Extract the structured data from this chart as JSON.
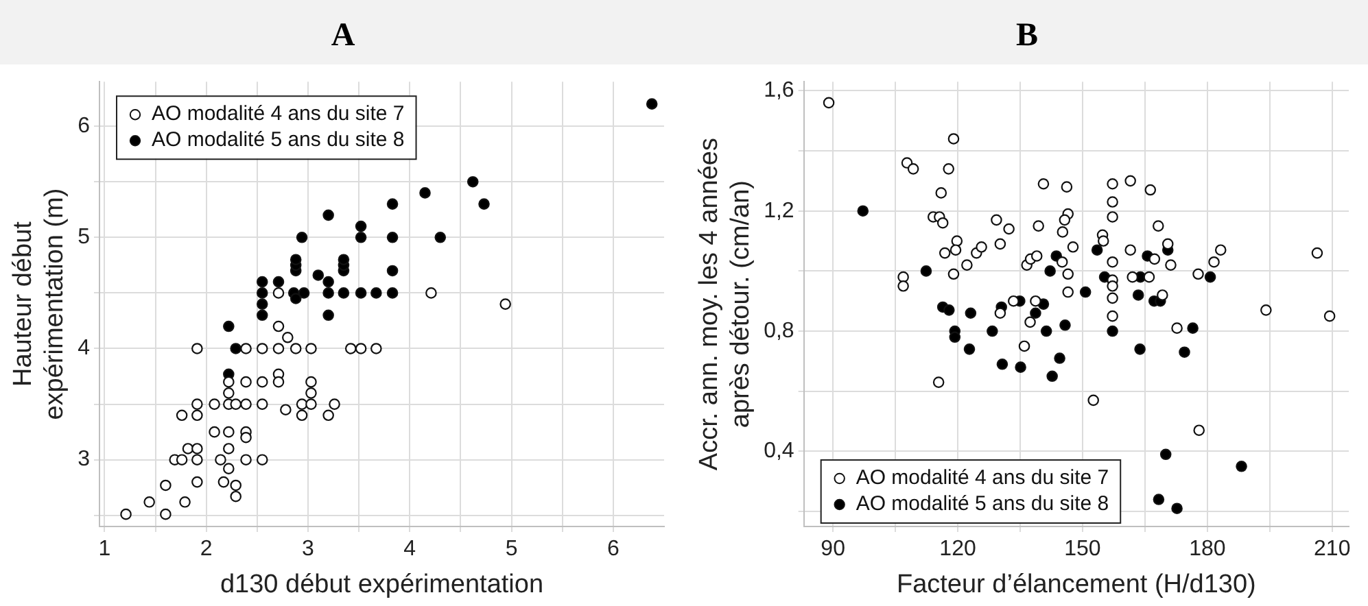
{
  "chart_data": [
    {
      "type": "scatter",
      "title": "A",
      "xlabel": "d130 début expérimentation",
      "ylabel": "Hauteur début\nexpérimentation (m)",
      "xlim": [
        0.95,
        6.5
      ],
      "ylim": [
        2.4,
        6.4
      ],
      "xticks": [
        1,
        {
          "value": 1.5,
          "label": null
        },
        2,
        {
          "value": 2.5,
          "label": null
        },
        3,
        {
          "value": 3.5,
          "label": null
        },
        4,
        {
          "value": 4.5,
          "label": null
        },
        5,
        {
          "value": 5.5,
          "label": null
        },
        6
      ],
      "yticks": [
        {
          "value": 2.5,
          "label": null
        },
        3,
        {
          "value": 3.5,
          "label": null
        },
        4,
        {
          "value": 4.5,
          "label": null
        },
        5,
        {
          "value": 5.5,
          "label": null
        },
        6
      ],
      "grid": true,
      "legend": "top left",
      "marker": "circle",
      "series": [
        {
          "name": "AO modalité 4 ans du site 7",
          "color": "#ffffff",
          "x": [
            1.21,
            1.44,
            1.6,
            1.79,
            1.6,
            1.91,
            1.69,
            1.76,
            1.82,
            1.91,
            1.91,
            1.76,
            1.91,
            1.91,
            2.08,
            2.08,
            2.22,
            2.14,
            2.22,
            2.22,
            2.17,
            2.29,
            2.29,
            2.39,
            2.39,
            2.39,
            2.55,
            2.22,
            2.29,
            2.39,
            2.55,
            2.22,
            2.22,
            2.39,
            2.55,
            2.71,
            2.71,
            2.78,
            2.94,
            2.94,
            3.03,
            3.03,
            3.03,
            3.2,
            3.26,
            1.91,
            2.39,
            2.55,
            2.71,
            2.88,
            3.03,
            3.42,
            3.52,
            3.67,
            2.71,
            2.8,
            2.71,
            4.21,
            4.94
          ],
          "values": [
            2.51,
            2.62,
            2.51,
            2.62,
            2.77,
            2.8,
            3.0,
            3.0,
            3.1,
            3.1,
            3.0,
            3.4,
            3.4,
            3.5,
            3.5,
            3.25,
            3.25,
            3.0,
            3.1,
            2.92,
            2.8,
            2.77,
            2.67,
            3.25,
            3.2,
            3.0,
            3.0,
            3.5,
            3.5,
            3.5,
            3.5,
            3.6,
            3.7,
            3.7,
            3.7,
            3.77,
            3.7,
            3.45,
            3.5,
            3.4,
            3.5,
            3.6,
            3.7,
            3.4,
            3.5,
            4.0,
            4.0,
            4.0,
            4.0,
            4.0,
            4.0,
            4.0,
            4.0,
            4.0,
            4.2,
            4.1,
            4.5,
            4.5,
            4.4
          ]
        },
        {
          "name": "AO modalité 5 ans du site 8",
          "color": "#000000",
          "x": [
            6.38,
            2.22,
            2.29,
            2.22,
            2.55,
            2.55,
            2.55,
            2.55,
            2.71,
            2.86,
            2.88,
            2.96,
            2.88,
            2.88,
            2.88,
            2.94,
            3.2,
            3.2,
            3.1,
            3.2,
            3.2,
            3.35,
            3.35,
            3.35,
            3.35,
            3.52,
            3.52,
            3.52,
            3.67,
            3.83,
            3.83,
            3.83,
            3.83,
            4.15,
            4.3,
            4.62,
            4.73
          ],
          "values": [
            6.2,
            4.2,
            4.0,
            3.77,
            4.3,
            4.4,
            4.5,
            4.6,
            4.6,
            4.5,
            4.45,
            4.5,
            4.7,
            4.75,
            4.8,
            5.0,
            4.5,
            4.6,
            4.66,
            4.3,
            5.2,
            4.5,
            4.7,
            4.75,
            4.8,
            4.5,
            5.0,
            5.1,
            4.5,
            4.5,
            4.7,
            5.0,
            5.3,
            5.4,
            5.0,
            5.5,
            5.3
          ]
        }
      ]
    },
    {
      "type": "scatter",
      "title": "B",
      "xlabel": "Facteur d’élancement (H/d130)",
      "ylabel": "Accr. ann. moy. les 4 années\naprès détour. (cm/an)",
      "xlim": [
        83,
        214
      ],
      "ylim": [
        0.15,
        1.63
      ],
      "xticks": [
        90,
        {
          "value": 105,
          "label": null
        },
        120,
        {
          "value": 135,
          "label": null
        },
        150,
        {
          "value": 165,
          "label": null
        },
        180,
        {
          "value": 195,
          "label": null
        },
        210
      ],
      "yticks": [
        {
          "value": 0.2,
          "label": null
        },
        {
          "value": 0.4,
          "label": "0,4"
        },
        {
          "value": 0.6,
          "label": null
        },
        {
          "value": 0.8,
          "label": "0,8"
        },
        {
          "value": 1.0,
          "label": null
        },
        {
          "value": 1.2,
          "label": "1,2"
        },
        {
          "value": 1.4,
          "label": null
        },
        {
          "value": 1.6,
          "label": "1,6"
        }
      ],
      "grid": true,
      "legend": "bottom left",
      "marker": "circle",
      "series": [
        {
          "name": "AO modalité 4 ans du site 7",
          "color": "#ffffff",
          "x": [
            89.0,
            107.8,
            109.3,
            106.9,
            106.9,
            119.0,
            117.8,
            116.0,
            114.1,
            115.6,
            116.4,
            116.9,
            119.8,
            119.5,
            119.0,
            115.4,
            122.2,
            124.5,
            125.7,
            129.3,
            132.3,
            130.2,
            130.2,
            133.4,
            136.0,
            136.6,
            137.5,
            139.0,
            137.4,
            138.7,
            139.4,
            140.6,
            146.2,
            146.5,
            145.7,
            145.2,
            147.7,
            145.1,
            146.5,
            146.5,
            152.6,
            154.8,
            155.0,
            157.2,
            157.2,
            157.2,
            157.2,
            157.2,
            157.2,
            157.2,
            157.2,
            161.5,
            161.5,
            162.0,
            166.0,
            166.3,
            167.3,
            168.2,
            169.2,
            170.5,
            171.2,
            172.7,
            177.8,
            178.0,
            181.6,
            183.2,
            194.1,
            206.4,
            209.4
          ],
          "values": [
            1.56,
            1.36,
            1.34,
            0.98,
            0.95,
            1.44,
            1.34,
            1.26,
            1.18,
            1.18,
            1.16,
            1.06,
            1.1,
            1.07,
            0.99,
            0.63,
            1.02,
            1.06,
            1.08,
            1.17,
            1.14,
            1.09,
            0.86,
            0.9,
            0.75,
            1.02,
            1.04,
            1.05,
            0.83,
            0.9,
            1.15,
            1.29,
            1.28,
            1.19,
            1.17,
            1.13,
            1.08,
            1.03,
            0.99,
            0.93,
            0.57,
            1.12,
            1.1,
            1.29,
            1.23,
            1.18,
            1.03,
            0.97,
            0.95,
            0.91,
            0.85,
            1.3,
            1.07,
            0.98,
            0.98,
            1.27,
            1.04,
            1.15,
            0.92,
            1.09,
            1.02,
            0.81,
            0.99,
            0.47,
            1.03,
            1.07,
            0.87,
            1.06,
            0.85
          ]
        },
        {
          "name": "AO modalité 5 ans du site 8",
          "color": "#000000",
          "x": [
            97.2,
            112.4,
            116.4,
            117.9,
            119.3,
            119.3,
            123.1,
            122.8,
            128.3,
            130.5,
            130.7,
            134.9,
            135.1,
            138.7,
            140.6,
            141.3,
            142.2,
            142.7,
            143.7,
            144.5,
            145.8,
            150.7,
            153.5,
            155.3,
            157.2,
            163.4,
            163.8,
            163.9,
            165.6,
            167.2,
            168.7,
            170.5,
            170.0,
            168.3,
            172.7,
            174.5,
            176.5,
            180.7,
            188.2
          ],
          "values": [
            1.2,
            1.0,
            0.88,
            0.87,
            0.8,
            0.78,
            0.86,
            0.74,
            0.8,
            0.88,
            0.69,
            0.9,
            0.68,
            0.86,
            0.89,
            0.8,
            1.0,
            0.65,
            1.05,
            0.71,
            0.82,
            0.93,
            1.07,
            0.98,
            0.8,
            0.92,
            0.74,
            0.98,
            1.05,
            0.9,
            0.9,
            1.07,
            0.39,
            0.24,
            0.21,
            0.73,
            0.81,
            0.98,
            0.35
          ]
        }
      ]
    }
  ]
}
